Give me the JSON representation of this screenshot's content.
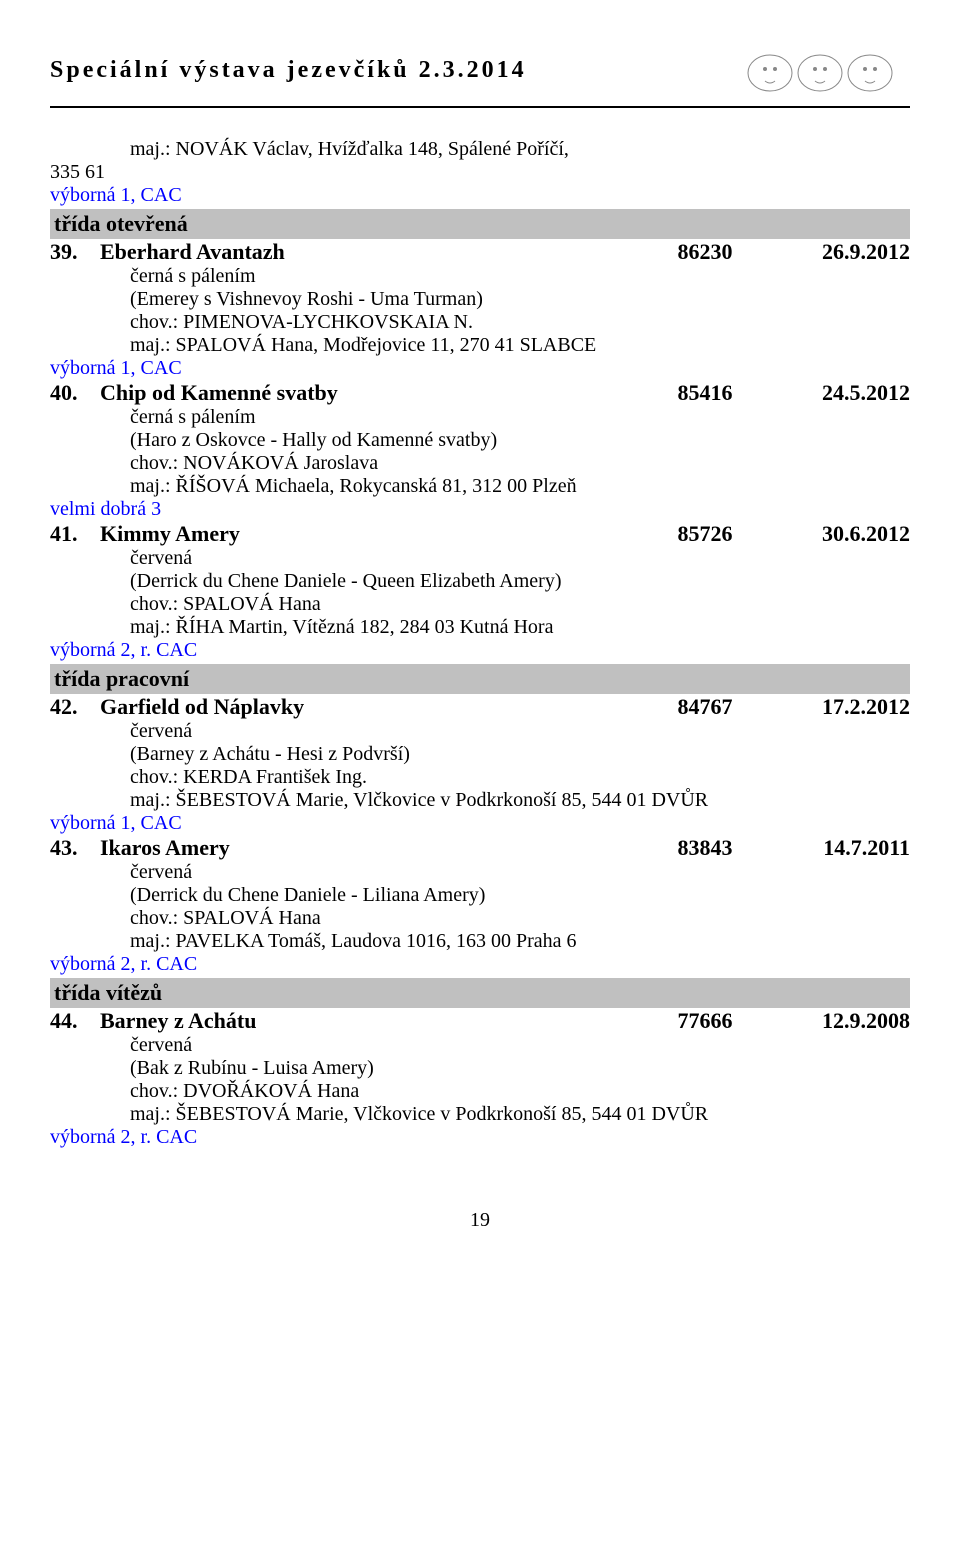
{
  "header": {
    "title": "Speciální výstava jezevčíků 2.3.2014"
  },
  "preEntry": {
    "owner": "maj.: NOVÁK Václav, Hvížďalka 148, Spálené Poříčí,",
    "number": "335 61",
    "result": "výborná 1, CAC"
  },
  "sections": [
    {
      "className": "třída otevřená",
      "entries": [
        {
          "num": "39.",
          "name": "Eberhard Avantazh",
          "reg": "86230",
          "date": "26.9.2012",
          "color": "černá s pálením",
          "parents": "(Emerey s Vishnevoy Roshi - Uma Turman)",
          "breeder": "chov.: PIMENOVA-LYCHKOVSKAIA N.",
          "owner": "maj.: SPALOVÁ Hana, Modřejovice 11, 270 41 SLABCE",
          "result": "výborná 1, CAC"
        },
        {
          "num": "40.",
          "name": "Chip od Kamenné svatby",
          "reg": "85416",
          "date": "24.5.2012",
          "color": "černá s pálením",
          "parents": "(Haro z Oskovce - Hally od Kamenné svatby)",
          "breeder": "chov.: NOVÁKOVÁ Jaroslava",
          "owner": "maj.: ŘÍŠOVÁ Michaela, Rokycanská 81, 312 00 Plzeň",
          "result": "velmi dobrá 3"
        },
        {
          "num": "41.",
          "name": "Kimmy Amery",
          "reg": "85726",
          "date": "30.6.2012",
          "color": "červená",
          "parents": "(Derrick du Chene Daniele - Queen Elizabeth Amery)",
          "breeder": "chov.: SPALOVÁ Hana",
          "owner": "maj.: ŘÍHA Martin, Vítězná 182, 284 03 Kutná Hora",
          "result": "výborná 2, r. CAC"
        }
      ]
    },
    {
      "className": "třída pracovní",
      "entries": [
        {
          "num": "42.",
          "name": "Garfield od Náplavky",
          "reg": "84767",
          "date": "17.2.2012",
          "color": "červená",
          "parents": "(Barney z Achátu - Hesi z Podvrší)",
          "breeder": "chov.: KERDA František Ing.",
          "owner": "maj.: ŠEBESTOVÁ Marie, Vlčkovice v Podkrkonoší 85, 544 01 DVŮR",
          "result": "výborná 1, CAC"
        },
        {
          "num": "43.",
          "name": "Ikaros Amery",
          "reg": "83843",
          "date": "14.7.2011",
          "color": "červená",
          "parents": "(Derrick du Chene Daniele - Liliana Amery)",
          "breeder": "chov.: SPALOVÁ Hana",
          "owner": "maj.: PAVELKA Tomáš, Laudova 1016, 163 00 Praha 6",
          "result": "výborná 2, r. CAC"
        }
      ]
    },
    {
      "className": "třída vítězů",
      "entries": [
        {
          "num": "44.",
          "name": "Barney z Achátu",
          "reg": "77666",
          "date": "12.9.2008",
          "color": "červená",
          "parents": "(Bak z Rubínu - Luisa Amery)",
          "breeder": "chov.: DVOŘÁKOVÁ Hana",
          "owner": "maj.: ŠEBESTOVÁ Marie, Vlčkovice v Podkrkonoší 85, 544 01 DVŮR",
          "result": "výborná 2, r. CAC"
        }
      ]
    }
  ],
  "pageNumber": "19"
}
